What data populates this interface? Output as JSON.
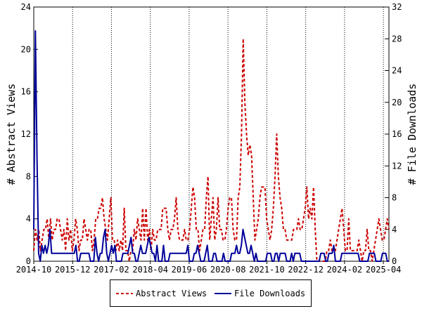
{
  "chart_data": {
    "type": "line",
    "x_start": "2014-10",
    "x_end": "2025-06",
    "x_ticks": [
      "2014-10",
      "2015-12",
      "2017-02",
      "2018-04",
      "2019-06",
      "2020-08",
      "2021-10",
      "2022-12",
      "2024-02",
      "2025-04"
    ],
    "ylabel_left": "# Abstract Views",
    "ylabel_right": "# File Downloads",
    "ylim_left": [
      0,
      24
    ],
    "ylim_right": [
      0,
      32
    ],
    "yticks_left": [
      0,
      4,
      8,
      12,
      16,
      20,
      24
    ],
    "yticks_right": [
      0,
      4,
      8,
      12,
      16,
      20,
      24,
      28,
      32
    ],
    "legend_position": "bottom",
    "series": [
      {
        "name": "Abstract Views",
        "axis": "left",
        "color": "#cc0000",
        "style": "dashed",
        "values": [
          1,
          3,
          2,
          3,
          1,
          2,
          3,
          3,
          4,
          2,
          4,
          2,
          3,
          3,
          4,
          4,
          3,
          2,
          3,
          1,
          4,
          2,
          3,
          1,
          2,
          4,
          3,
          1,
          2,
          2,
          4,
          3,
          2,
          3,
          3,
          1,
          2,
          4,
          4,
          5,
          5,
          6,
          4,
          3,
          2,
          4,
          6,
          2,
          2,
          1,
          2,
          1,
          2,
          1,
          5,
          1,
          1,
          0,
          1,
          1,
          3,
          2,
          4,
          3,
          2,
          5,
          2,
          5,
          2,
          3,
          1,
          3,
          2,
          2,
          3,
          3,
          3,
          5,
          5,
          5,
          3,
          2,
          3,
          3,
          4,
          6,
          3,
          2,
          2,
          2,
          3,
          2,
          2,
          3,
          5,
          7,
          6,
          3,
          3,
          1,
          2,
          3,
          3,
          6,
          8,
          2,
          4,
          6,
          2,
          3,
          6,
          3,
          3,
          2,
          2,
          3,
          5,
          6,
          6,
          3,
          2,
          2,
          6,
          7,
          12,
          21,
          15,
          12,
          10,
          11,
          10,
          6,
          2,
          3,
          4,
          6,
          7,
          7,
          7,
          4,
          3,
          2,
          3,
          5,
          8,
          12,
          8,
          6,
          5,
          3,
          3,
          2,
          2,
          2,
          2,
          3,
          3,
          3,
          4,
          3,
          3,
          4,
          5,
          7,
          4,
          5,
          4,
          7,
          3,
          0,
          0,
          0,
          0,
          0,
          0,
          1,
          1,
          2,
          1,
          1,
          1,
          2,
          3,
          4,
          5,
          3,
          1,
          1,
          4,
          1,
          1,
          1,
          1,
          1,
          2,
          1,
          0,
          1,
          1,
          3,
          1,
          1,
          0,
          1,
          2,
          3,
          4,
          3,
          2,
          2,
          3,
          4,
          3
        ]
      },
      {
        "name": "File Downloads",
        "axis": "right",
        "color": "#000099",
        "style": "solid",
        "values": [
          4,
          29,
          13,
          1,
          0,
          2,
          1,
          2,
          1,
          2,
          4,
          1,
          1,
          1,
          1,
          1,
          1,
          1,
          1,
          1,
          1,
          1,
          1,
          1,
          1,
          1,
          2,
          0,
          0,
          1,
          1,
          1,
          1,
          1,
          1,
          0,
          0,
          0,
          3,
          1,
          0,
          1,
          1,
          3,
          4,
          1,
          0,
          1,
          2,
          1,
          2,
          0,
          0,
          0,
          0,
          1,
          1,
          1,
          1,
          2,
          3,
          1,
          1,
          0,
          0,
          1,
          2,
          1,
          1,
          1,
          2,
          3,
          2,
          1,
          1,
          0,
          2,
          0,
          0,
          0,
          2,
          0,
          0,
          0,
          1,
          1,
          1,
          1,
          1,
          1,
          1,
          1,
          1,
          1,
          1,
          2,
          0,
          0,
          0,
          1,
          1,
          2,
          1,
          0,
          0,
          0,
          1,
          2,
          0,
          0,
          0,
          1,
          1,
          0,
          0,
          0,
          0,
          1,
          0,
          0,
          0,
          0,
          1,
          1,
          1,
          2,
          1,
          1,
          2,
          4,
          3,
          2,
          1,
          1,
          2,
          1,
          0,
          1,
          0,
          0,
          0,
          0,
          0,
          0,
          1,
          1,
          1,
          0,
          0,
          1,
          1,
          0,
          1,
          1,
          1,
          1,
          0,
          0,
          0,
          1,
          0,
          1,
          1,
          1,
          1,
          0,
          0,
          0,
          0,
          0,
          0,
          0,
          0,
          0,
          0,
          0,
          0,
          1,
          1,
          1,
          0,
          0,
          1,
          1,
          1,
          2,
          0,
          0,
          0,
          0,
          1,
          1,
          1,
          1,
          1,
          1,
          1,
          1,
          1,
          1,
          1,
          0,
          0,
          0,
          0,
          0,
          0,
          1,
          1,
          1,
          1,
          0,
          0,
          0,
          0,
          1,
          1,
          1,
          0,
          0
        ]
      }
    ]
  }
}
